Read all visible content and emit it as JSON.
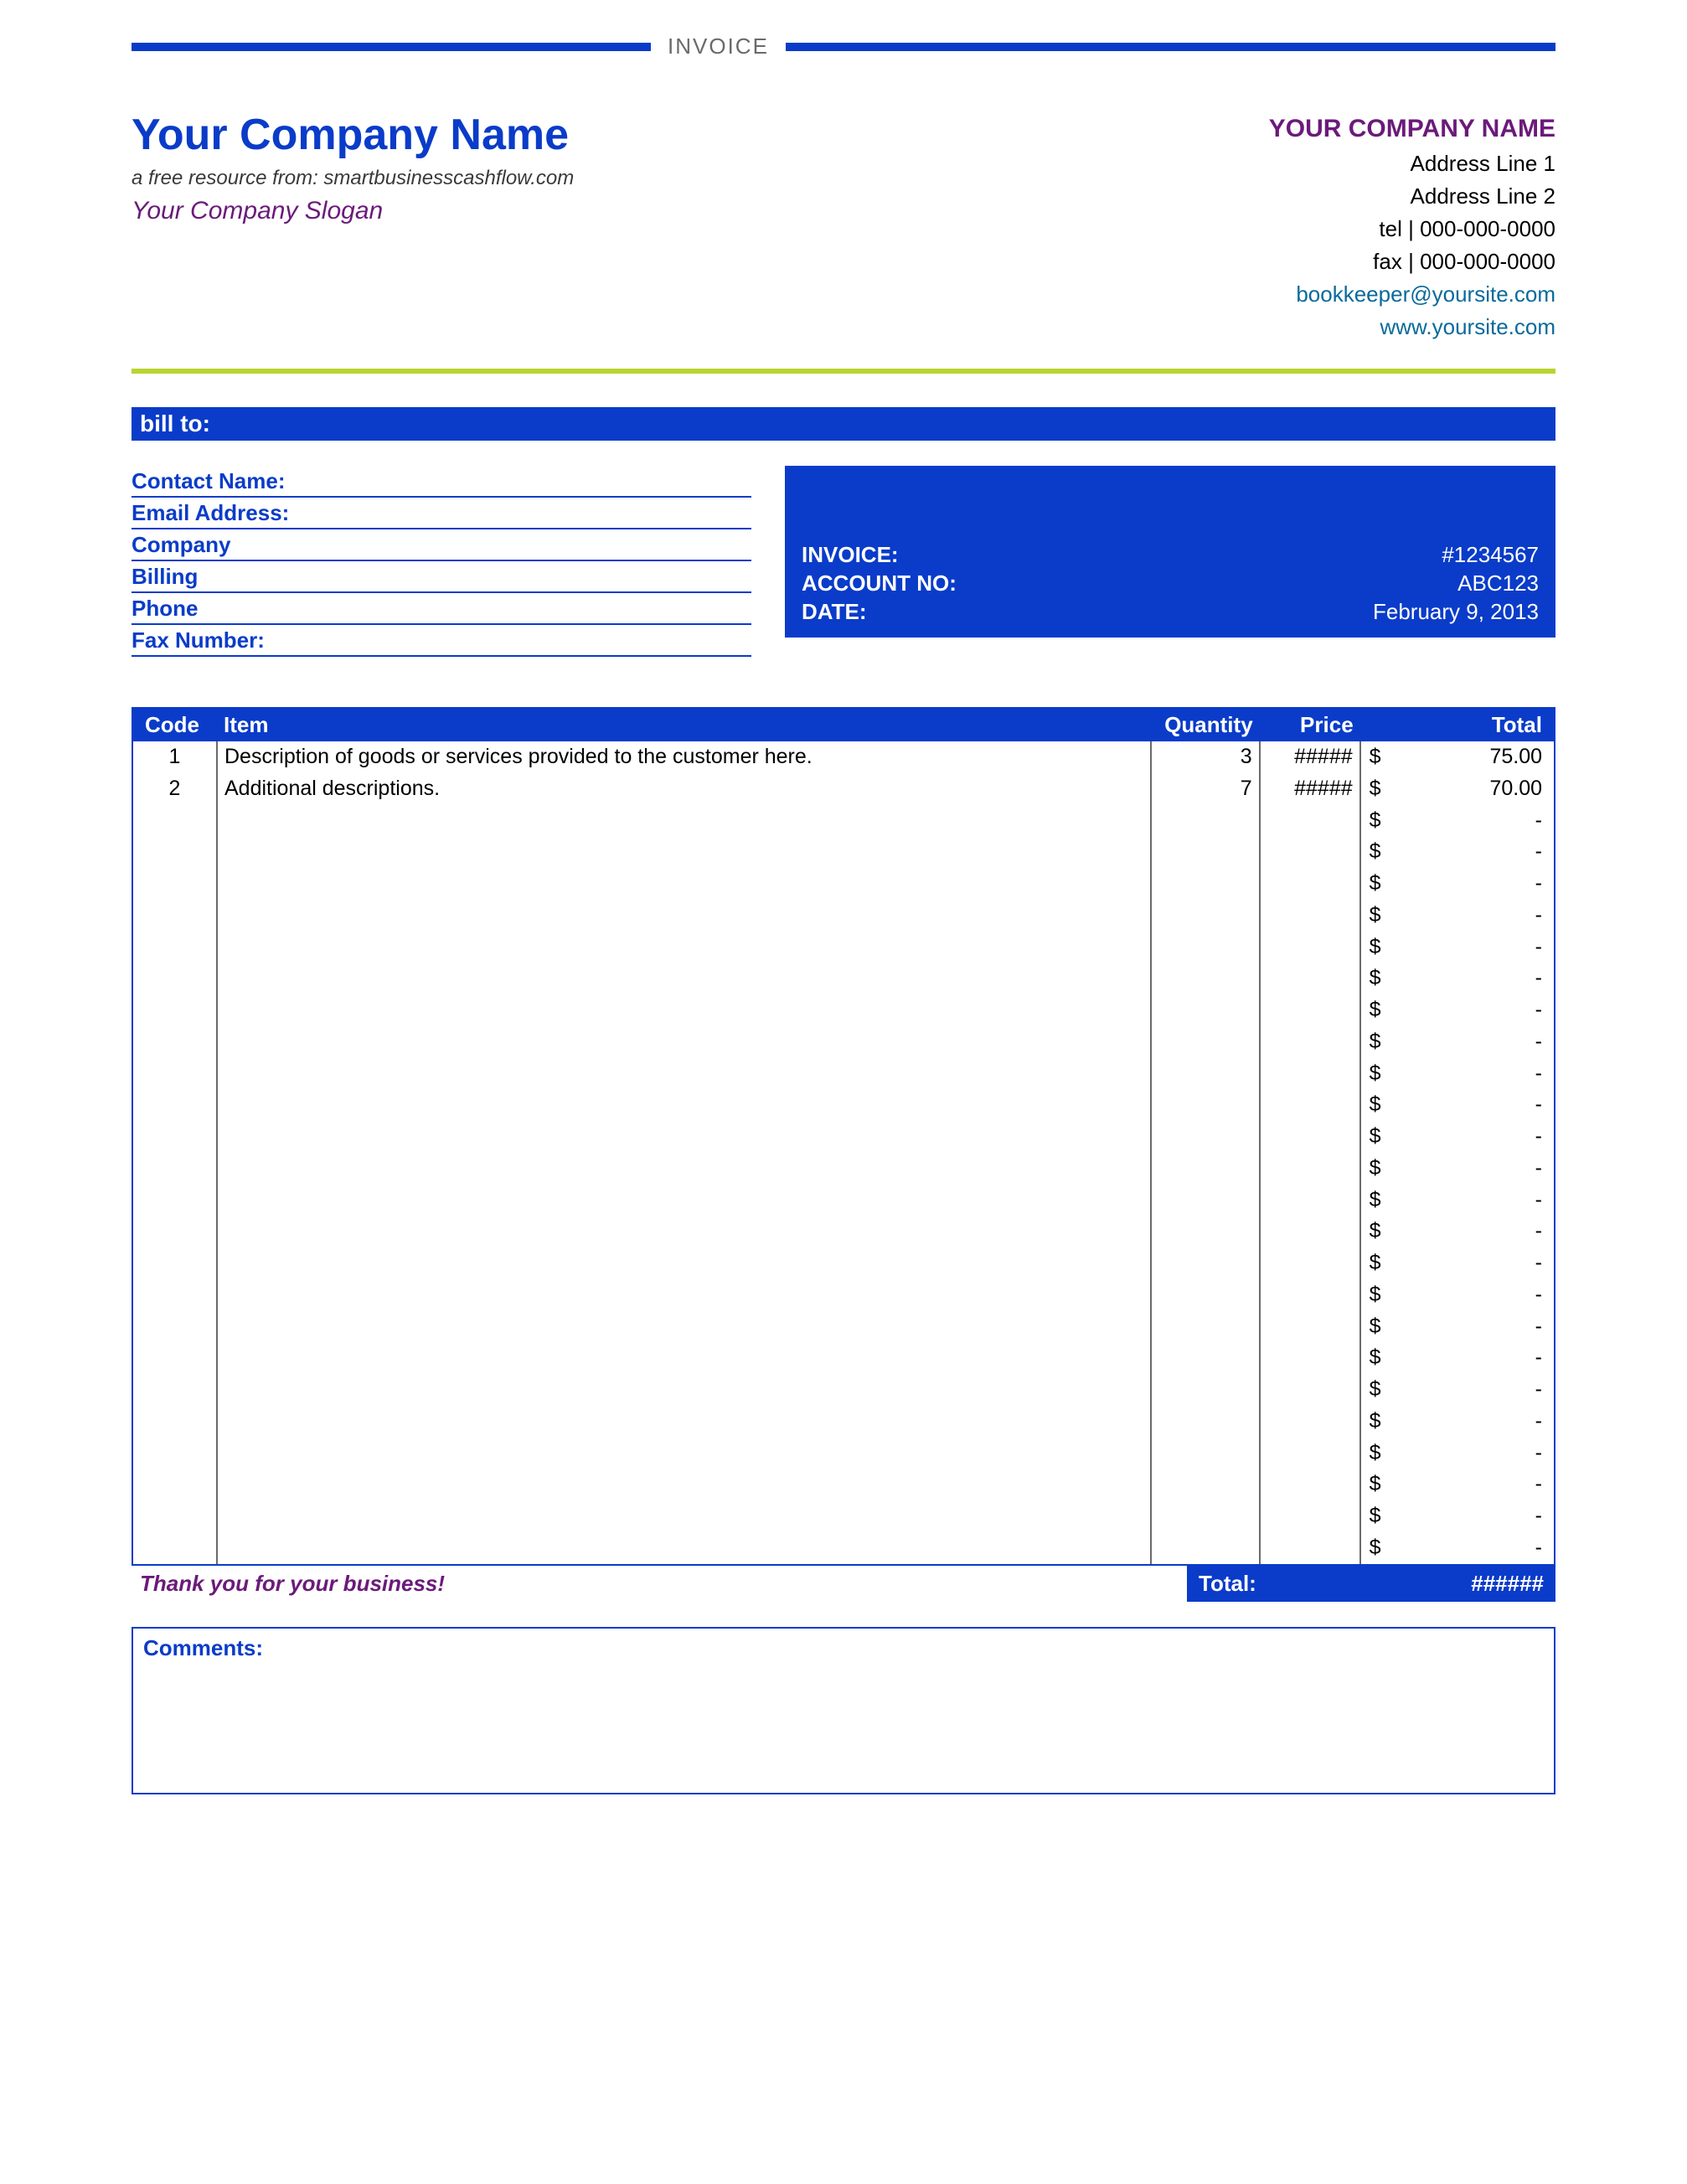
{
  "colors": {
    "primary_blue": "#0a3cc9",
    "header_bar_blue": "#1434d0",
    "text_blue": "#0a3cc9",
    "purple": "#6b1a7a",
    "link_blue": "#0a6a9a",
    "yellow_green": "#b8d430",
    "table_border": "#0a3cc9",
    "cell_border": "#6a6a6a",
    "top_label_gray": "#6a6a6a"
  },
  "top": {
    "label": "INVOICE"
  },
  "company": {
    "name": "Your Company Name",
    "free_resource": "a free resource from: smartbusinesscashflow.com",
    "slogan": "Your Company Slogan",
    "right_name": "YOUR COMPANY NAME",
    "address1": "Address Line 1",
    "address2": "Address Line 2",
    "tel_label": "tel |",
    "tel": "000-000-0000",
    "fax_label": "fax |",
    "fax": "000-000-0000",
    "email": "bookkeeper@yoursite.com",
    "website": "www.yoursite.com"
  },
  "billto": {
    "header": "bill to:",
    "fields": [
      "Contact Name:",
      "Email Address:",
      "Company",
      "Billing",
      "Phone",
      "Fax Number:"
    ]
  },
  "invoice_box": {
    "rows": [
      {
        "label": "INVOICE:",
        "value": "#1234567"
      },
      {
        "label": "ACCOUNT NO:",
        "value": "ABC123"
      },
      {
        "label": "DATE:",
        "value": "February 9, 2013"
      }
    ]
  },
  "items": {
    "headers": {
      "code": "Code",
      "item": "Item",
      "qty": "Quantity",
      "price": "Price",
      "total": "Total"
    },
    "currency": "$",
    "dash": "-",
    "hash": "#####",
    "rows": [
      {
        "code": "1",
        "item": "Description of goods or services provided to the customer here.",
        "qty": "3",
        "price": "#####",
        "total": "75.00"
      },
      {
        "code": "2",
        "item": "Additional descriptions.",
        "qty": "7",
        "price": "#####",
        "total": "70.00"
      }
    ],
    "empty_row_count": 24
  },
  "footer": {
    "thanks": "Thank you for your business!",
    "total_label": "Total:",
    "total_value": "######"
  },
  "comments": {
    "label": "Comments:"
  }
}
